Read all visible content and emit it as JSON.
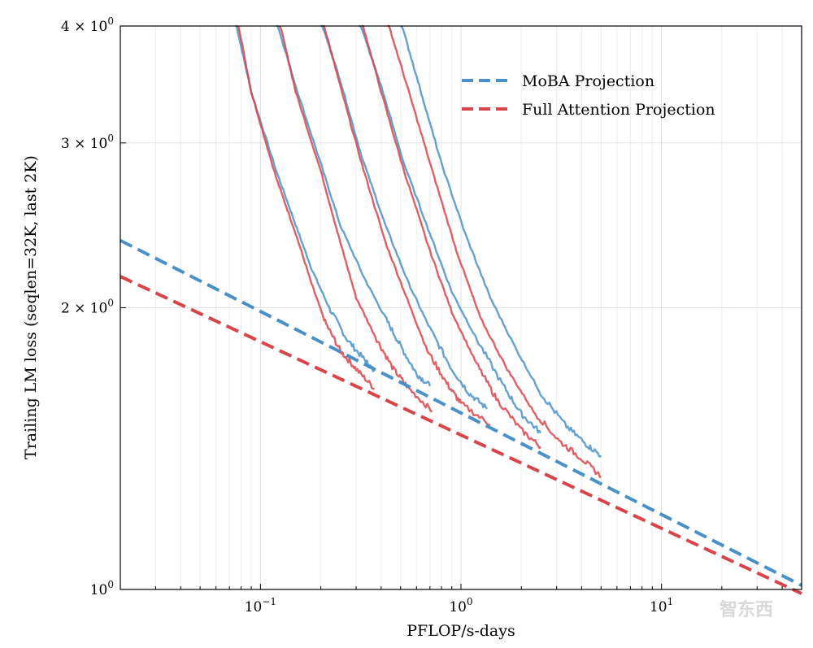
{
  "chart_data": {
    "type": "line",
    "xscale": "log",
    "yscale": "log",
    "xlabel": "PFLOP/s-days",
    "ylabel": "Trailing LM loss (seqlen=32K, last 2K)",
    "xlim": [
      0.02,
      50
    ],
    "ylim": [
      1.0,
      4.0
    ],
    "grid": true,
    "legend_position": "top-right",
    "x_ticks": [
      {
        "value": 0.1,
        "base": "10",
        "exp": "−1"
      },
      {
        "value": 1,
        "base": "10",
        "exp": "0"
      },
      {
        "value": 10,
        "base": "10",
        "exp": "1"
      }
    ],
    "y_ticks": [
      {
        "value": 1,
        "base": "10",
        "exp": "0",
        "prefix": ""
      },
      {
        "value": 2,
        "base": "10",
        "exp": "0",
        "prefix": "2 × "
      },
      {
        "value": 3,
        "base": "10",
        "exp": "0",
        "prefix": "3 × "
      },
      {
        "value": 4,
        "base": "10",
        "exp": "0",
        "prefix": "4 × "
      }
    ],
    "colors": {
      "moba": "#4a90c8",
      "full": "#d9434a"
    },
    "series": [
      {
        "name": "MoBA Projection",
        "style": "dashed",
        "color": "#4a90c8",
        "points": [
          [
            0.02,
            2.36
          ],
          [
            50,
            1.01
          ]
        ]
      },
      {
        "name": "Full Attention Projection",
        "style": "dashed",
        "color": "#d9434a",
        "points": [
          [
            0.02,
            2.16
          ],
          [
            50,
            0.99
          ]
        ]
      }
    ],
    "training_curves": [
      {
        "group": "MoBA",
        "color": "#4a90c8",
        "points": [
          [
            0.075,
            4.05
          ],
          [
            0.09,
            3.4
          ],
          [
            0.12,
            2.8
          ],
          [
            0.15,
            2.45
          ],
          [
            0.18,
            2.2
          ],
          [
            0.22,
            2.0
          ],
          [
            0.27,
            1.85
          ],
          [
            0.33,
            1.76
          ],
          [
            0.37,
            1.71
          ]
        ]
      },
      {
        "group": "Full",
        "color": "#d9434a",
        "points": [
          [
            0.077,
            4.05
          ],
          [
            0.09,
            3.4
          ],
          [
            0.12,
            2.75
          ],
          [
            0.15,
            2.4
          ],
          [
            0.18,
            2.12
          ],
          [
            0.21,
            1.93
          ],
          [
            0.25,
            1.8
          ],
          [
            0.3,
            1.72
          ],
          [
            0.37,
            1.64
          ]
        ]
      },
      {
        "group": "MoBA",
        "color": "#4a90c8",
        "points": [
          [
            0.12,
            4.05
          ],
          [
            0.15,
            3.45
          ],
          [
            0.2,
            2.85
          ],
          [
            0.25,
            2.45
          ],
          [
            0.33,
            2.15
          ],
          [
            0.42,
            1.95
          ],
          [
            0.5,
            1.82
          ],
          [
            0.6,
            1.7
          ],
          [
            0.7,
            1.65
          ]
        ]
      },
      {
        "group": "Full",
        "color": "#d9434a",
        "points": [
          [
            0.124,
            4.05
          ],
          [
            0.15,
            3.4
          ],
          [
            0.2,
            2.8
          ],
          [
            0.25,
            2.35
          ],
          [
            0.3,
            2.05
          ],
          [
            0.38,
            1.85
          ],
          [
            0.46,
            1.72
          ],
          [
            0.55,
            1.64
          ],
          [
            0.72,
            1.55
          ]
        ]
      },
      {
        "group": "MoBA",
        "color": "#4a90c8",
        "points": [
          [
            0.2,
            4.05
          ],
          [
            0.25,
            3.5
          ],
          [
            0.32,
            2.9
          ],
          [
            0.42,
            2.45
          ],
          [
            0.55,
            2.12
          ],
          [
            0.7,
            1.9
          ],
          [
            0.9,
            1.72
          ],
          [
            1.1,
            1.62
          ],
          [
            1.35,
            1.56
          ]
        ]
      },
      {
        "group": "Full",
        "color": "#d9434a",
        "points": [
          [
            0.205,
            4.05
          ],
          [
            0.25,
            3.45
          ],
          [
            0.32,
            2.85
          ],
          [
            0.42,
            2.35
          ],
          [
            0.55,
            2.02
          ],
          [
            0.68,
            1.8
          ],
          [
            0.85,
            1.66
          ],
          [
            1.0,
            1.58
          ],
          [
            1.4,
            1.5
          ]
        ]
      },
      {
        "group": "MoBA",
        "color": "#4a90c8",
        "points": [
          [
            0.31,
            4.05
          ],
          [
            0.4,
            3.45
          ],
          [
            0.52,
            2.85
          ],
          [
            0.7,
            2.4
          ],
          [
            0.9,
            2.08
          ],
          [
            1.2,
            1.85
          ],
          [
            1.6,
            1.66
          ],
          [
            2.0,
            1.54
          ],
          [
            2.5,
            1.47
          ]
        ]
      },
      {
        "group": "Full",
        "color": "#d9434a",
        "points": [
          [
            0.32,
            4.05
          ],
          [
            0.4,
            3.4
          ],
          [
            0.52,
            2.8
          ],
          [
            0.7,
            2.3
          ],
          [
            0.9,
            1.98
          ],
          [
            1.2,
            1.74
          ],
          [
            1.5,
            1.6
          ],
          [
            2.0,
            1.48
          ],
          [
            2.5,
            1.42
          ]
        ]
      },
      {
        "group": "MoBA",
        "color": "#4a90c8",
        "points": [
          [
            0.5,
            4.05
          ],
          [
            0.62,
            3.45
          ],
          [
            0.8,
            2.85
          ],
          [
            1.05,
            2.4
          ],
          [
            1.4,
            2.05
          ],
          [
            1.9,
            1.8
          ],
          [
            2.5,
            1.62
          ],
          [
            3.3,
            1.5
          ],
          [
            4.2,
            1.43
          ],
          [
            5.0,
            1.39
          ]
        ]
      },
      {
        "group": "Full",
        "color": "#d9434a",
        "points": [
          [
            0.43,
            4.05
          ],
          [
            0.55,
            3.4
          ],
          [
            0.72,
            2.8
          ],
          [
            0.95,
            2.3
          ],
          [
            1.25,
            1.95
          ],
          [
            1.7,
            1.72
          ],
          [
            2.3,
            1.55
          ],
          [
            3.1,
            1.44
          ],
          [
            4.0,
            1.38
          ],
          [
            5.0,
            1.32
          ]
        ]
      }
    ]
  },
  "watermark": "智东西"
}
